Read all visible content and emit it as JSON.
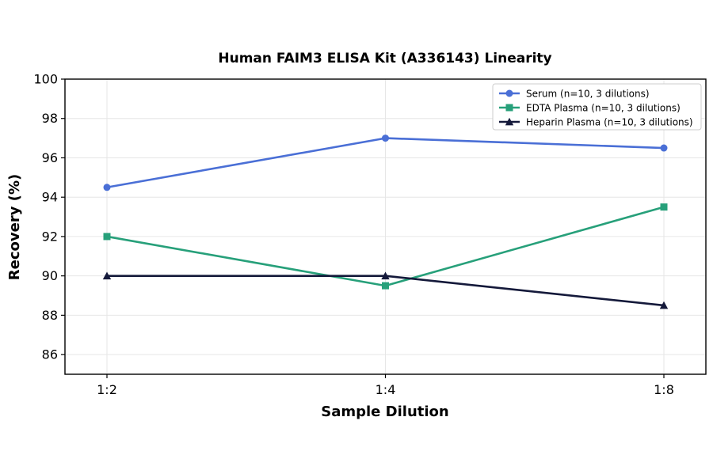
{
  "chart_data": {
    "type": "line",
    "title": "Human FAIM3 ELISA Kit (A336143) Linearity",
    "xlabel": "Sample Dilution",
    "ylabel": "Recovery (%)",
    "categories": [
      "1:2",
      "1:4",
      "1:8"
    ],
    "ylim": [
      85,
      100
    ],
    "yticks": [
      86,
      88,
      90,
      92,
      94,
      96,
      98,
      100
    ],
    "grid": true,
    "legend_position": "top-right",
    "series": [
      {
        "name": "Serum (n=10, 3 dilutions)",
        "values": [
          94.5,
          97.0,
          96.5
        ],
        "color": "#4a6fd6",
        "marker": "circle"
      },
      {
        "name": "EDTA Plasma (n=10, 3 dilutions)",
        "values": [
          92.0,
          89.5,
          93.5
        ],
        "color": "#27a07a",
        "marker": "square"
      },
      {
        "name": "Heparin Plasma (n=10, 3 dilutions)",
        "values": [
          90.0,
          90.0,
          88.5
        ],
        "color": "#14193a",
        "marker": "triangle"
      }
    ]
  }
}
